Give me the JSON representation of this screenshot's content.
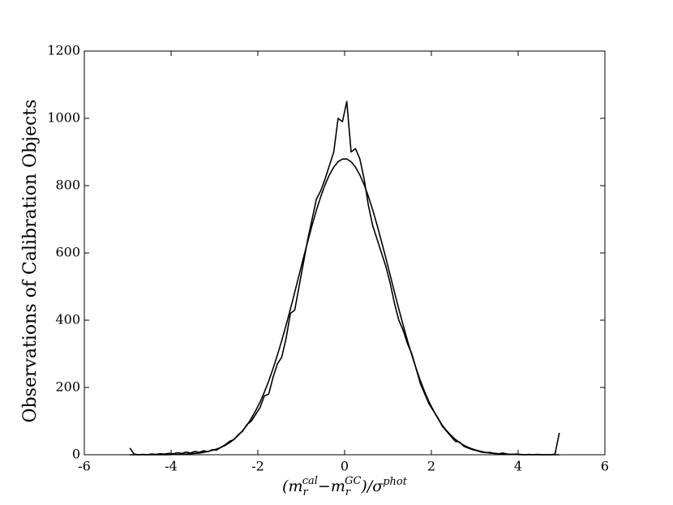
{
  "chart_data": {
    "type": "line",
    "ylabel": "Observations of Calibration Objects",
    "xlabel_parts": [
      "(m",
      "r",
      "cal",
      "−m",
      "r",
      "GC",
      ")/σ",
      "phot"
    ],
    "xlim": [
      -6,
      6
    ],
    "xticks": [
      -6,
      -4,
      -2,
      0,
      2,
      4,
      6
    ],
    "ylim": [
      0,
      1200
    ],
    "yticks": [
      0,
      200,
      400,
      600,
      800,
      1000,
      1200
    ],
    "x": [
      -4.95,
      -4.85,
      -4.75,
      -4.65,
      -4.55,
      -4.45,
      -4.35,
      -4.25,
      -4.15,
      -4.05,
      -3.95,
      -3.85,
      -3.75,
      -3.65,
      -3.55,
      -3.45,
      -3.35,
      -3.25,
      -3.15,
      -3.05,
      -2.95,
      -2.85,
      -2.75,
      -2.65,
      -2.55,
      -2.45,
      -2.35,
      -2.25,
      -2.15,
      -2.05,
      -1.95,
      -1.85,
      -1.75,
      -1.65,
      -1.55,
      -1.45,
      -1.35,
      -1.25,
      -1.15,
      -1.05,
      -0.95,
      -0.85,
      -0.75,
      -0.65,
      -0.55,
      -0.45,
      -0.35,
      -0.25,
      -0.15,
      -0.05,
      0.05,
      0.15,
      0.25,
      0.35,
      0.45,
      0.55,
      0.65,
      0.75,
      0.85,
      0.95,
      1.05,
      1.15,
      1.25,
      1.35,
      1.45,
      1.55,
      1.65,
      1.75,
      1.85,
      1.95,
      2.05,
      2.15,
      2.25,
      2.35,
      2.45,
      2.55,
      2.65,
      2.75,
      2.85,
      2.95,
      3.05,
      3.15,
      3.25,
      3.35,
      3.45,
      3.55,
      3.65,
      3.75,
      3.85,
      3.95,
      4.05,
      4.15,
      4.25,
      4.35,
      4.45,
      4.55,
      4.65,
      4.75,
      4.85,
      4.95
    ],
    "series": [
      {
        "color": "#000000",
        "values": [
          20,
          2,
          0,
          1,
          0,
          2,
          1,
          3,
          2,
          4,
          3,
          6,
          4,
          8,
          5,
          10,
          7,
          12,
          9,
          15,
          14,
          22,
          30,
          40,
          45,
          60,
          70,
          90,
          100,
          120,
          140,
          175,
          180,
          230,
          270,
          290,
          345,
          420,
          430,
          500,
          570,
          640,
          700,
          760,
          785,
          820,
          860,
          900,
          1000,
          990,
          1050,
          900,
          910,
          880,
          820,
          740,
          680,
          640,
          600,
          560,
          510,
          450,
          400,
          370,
          330,
          300,
          255,
          210,
          180,
          150,
          130,
          110,
          85,
          70,
          55,
          40,
          38,
          25,
          20,
          15,
          12,
          8,
          6,
          7,
          4,
          3,
          5,
          2,
          1,
          2,
          1,
          0,
          1,
          0,
          1,
          0,
          0,
          0,
          2,
          65
        ]
      },
      {
        "color": "#000000",
        "values": [
          0,
          0,
          0,
          0,
          0,
          0,
          0,
          0,
          0,
          0,
          1,
          1,
          1,
          2,
          3,
          4,
          5,
          7,
          10,
          13,
          17,
          22,
          28,
          36,
          46,
          58,
          72,
          88,
          108,
          131,
          156,
          186,
          219,
          256,
          296,
          339,
          385,
          433,
          483,
          534,
          585,
          634,
          682,
          727,
          767,
          803,
          832,
          855,
          871,
          879,
          879,
          871,
          855,
          832,
          803,
          767,
          727,
          682,
          634,
          585,
          534,
          483,
          433,
          385,
          339,
          296,
          256,
          219,
          186,
          156,
          131,
          108,
          88,
          72,
          58,
          46,
          36,
          28,
          22,
          17,
          13,
          10,
          7,
          5,
          4,
          3,
          2,
          1,
          1,
          1,
          0,
          0,
          0,
          0,
          0,
          0,
          0,
          0,
          0,
          0
        ]
      }
    ]
  }
}
